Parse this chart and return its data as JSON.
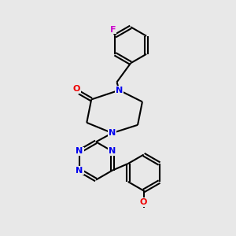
{
  "background_color": "#e8e8e8",
  "bond_color": "#000000",
  "nitrogen_color": "#0000ee",
  "oxygen_color": "#ee0000",
  "fluorine_color": "#cc00cc",
  "figsize": [
    3.0,
    3.0
  ],
  "dpi": 100,
  "lw": 1.5,
  "fs": 8.0,
  "off": 0.065,
  "xlim": [
    0,
    10
  ],
  "ylim": [
    0,
    10
  ]
}
